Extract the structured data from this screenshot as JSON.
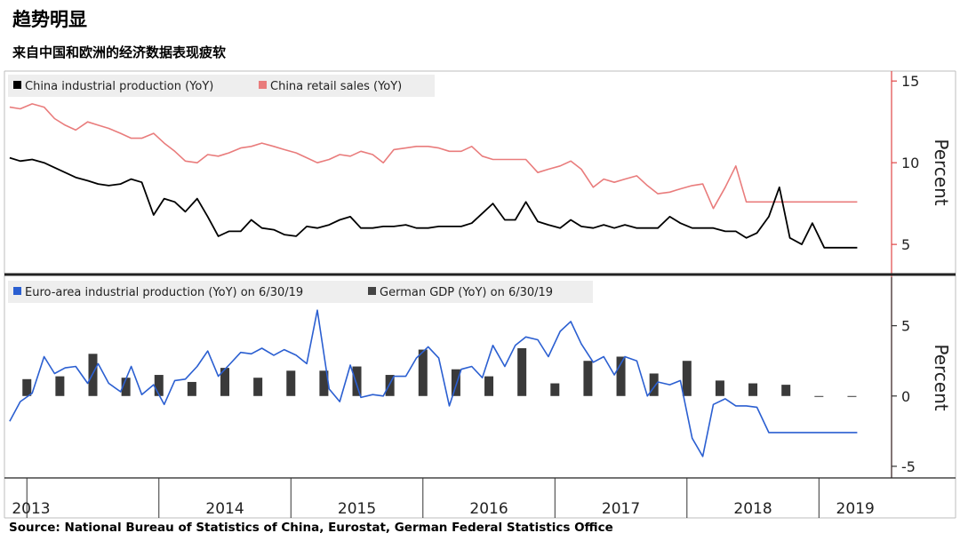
{
  "title": "趋势明显",
  "subtitle": "来自中国和欧洲的经济数据表现疲软",
  "source": "Source: National Bureau of Statistics of China, Eurostat, German Federal Statistics Office",
  "chart_data": [
    {
      "type": "line",
      "panel": "top",
      "ylabel": "Percent",
      "ylim": [
        4.3,
        15.5
      ],
      "yticks": [
        5,
        10,
        15
      ],
      "legend_position": "top-left",
      "series": [
        {
          "name": "China industrial production (YoY)",
          "color": "#000000",
          "x": [
            2012.87,
            2012.95,
            2013.04,
            2013.13,
            2013.21,
            2013.29,
            2013.37,
            2013.46,
            2013.54,
            2013.62,
            2013.71,
            2013.79,
            2013.87,
            2013.96,
            2014.04,
            2014.12,
            2014.2,
            2014.29,
            2014.37,
            2014.45,
            2014.53,
            2014.62,
            2014.7,
            2014.78,
            2014.87,
            2014.95,
            2015.04,
            2015.12,
            2015.2,
            2015.29,
            2015.37,
            2015.45,
            2015.53,
            2015.62,
            2015.7,
            2015.78,
            2015.87,
            2015.95,
            2016.04,
            2016.12,
            2016.2,
            2016.29,
            2016.37,
            2016.45,
            2016.53,
            2016.62,
            2016.7,
            2016.78,
            2016.87,
            2016.95,
            2017.04,
            2017.12,
            2017.2,
            2017.29,
            2017.37,
            2017.45,
            2017.53,
            2017.62,
            2017.7,
            2017.78,
            2017.87,
            2017.95,
            2018.04,
            2018.12,
            2018.2,
            2018.29,
            2018.37,
            2018.45,
            2018.53,
            2018.62,
            2018.7,
            2018.78,
            2018.87,
            2018.95,
            2019.04,
            2019.12,
            2019.2,
            2019.29
          ],
          "y": [
            10.3,
            10.1,
            10.2,
            10.0,
            9.7,
            9.4,
            9.1,
            8.9,
            8.7,
            8.6,
            8.7,
            9.0,
            8.8,
            6.8,
            7.8,
            7.6,
            7.0,
            7.8,
            6.7,
            5.5,
            5.8,
            5.8,
            6.5,
            6.0,
            5.9,
            5.6,
            5.5,
            6.1,
            6.0,
            6.2,
            6.5,
            6.7,
            6.0,
            6.0,
            6.1,
            6.1,
            6.2,
            6.0,
            6.0,
            6.1,
            6.1,
            6.1,
            6.3,
            6.9,
            7.5,
            6.5,
            6.5,
            7.6,
            6.4,
            6.2,
            6.0,
            6.5,
            6.1,
            6.0,
            6.2,
            6.0,
            6.2,
            6.0,
            6.0,
            6.0,
            6.7,
            6.3,
            6.0,
            6.0,
            6.0,
            5.8,
            5.8,
            5.4,
            5.7,
            6.7,
            8.5,
            5.4,
            5.0,
            6.3,
            4.8,
            4.8,
            4.8,
            4.8
          ]
        },
        {
          "name": "China retail sales (YoY)",
          "color": "#e97c7c",
          "x": [
            2012.87,
            2012.95,
            2013.04,
            2013.13,
            2013.21,
            2013.29,
            2013.37,
            2013.46,
            2013.54,
            2013.62,
            2013.71,
            2013.79,
            2013.87,
            2013.96,
            2014.04,
            2014.12,
            2014.2,
            2014.29,
            2014.37,
            2014.45,
            2014.53,
            2014.62,
            2014.7,
            2014.78,
            2014.87,
            2014.95,
            2015.04,
            2015.12,
            2015.2,
            2015.29,
            2015.37,
            2015.45,
            2015.53,
            2015.62,
            2015.7,
            2015.78,
            2015.87,
            2015.95,
            2016.04,
            2016.12,
            2016.2,
            2016.29,
            2016.37,
            2016.45,
            2016.53,
            2016.62,
            2016.7,
            2016.78,
            2016.87,
            2016.95,
            2017.04,
            2017.12,
            2017.2,
            2017.29,
            2017.37,
            2017.45,
            2017.53,
            2017.62,
            2017.7,
            2017.78,
            2017.87,
            2017.95,
            2018.04,
            2018.12,
            2018.2,
            2018.29,
            2018.37,
            2018.45,
            2018.53,
            2018.62,
            2018.7,
            2018.78,
            2018.87,
            2018.95,
            2019.04,
            2019.12,
            2019.2,
            2019.29
          ],
          "y": [
            13.4,
            13.3,
            13.6,
            13.4,
            12.7,
            12.3,
            12.0,
            12.5,
            12.3,
            12.1,
            11.8,
            11.5,
            11.5,
            11.8,
            11.2,
            10.7,
            10.1,
            10.0,
            10.5,
            10.4,
            10.6,
            10.9,
            11.0,
            11.2,
            11.0,
            10.8,
            10.6,
            10.3,
            10.0,
            10.2,
            10.5,
            10.4,
            10.7,
            10.5,
            10.0,
            10.8,
            10.9,
            11.0,
            11.0,
            10.9,
            10.7,
            10.7,
            11.0,
            10.4,
            10.2,
            10.2,
            10.2,
            10.2,
            9.4,
            9.6,
            9.8,
            10.1,
            9.6,
            8.5,
            9.0,
            8.8,
            9.0,
            9.2,
            8.6,
            8.1,
            8.2,
            8.4,
            8.6,
            8.7,
            7.2,
            8.5,
            9.8,
            7.6,
            7.6,
            7.6,
            7.6,
            7.6,
            7.6,
            7.6,
            7.6,
            7.6,
            7.6,
            7.6
          ]
        }
      ]
    },
    {
      "type": "bar+line",
      "panel": "bottom",
      "ylabel": "Percent",
      "ylim": [
        -5.7,
        8.2
      ],
      "yticks": [
        -5,
        0,
        5
      ],
      "legend_position": "top-left",
      "series": [
        {
          "name": "Euro-area industrial production (YoY) on 6/30/19",
          "type": "line",
          "color": "#2b5fd1",
          "x": [
            2012.87,
            2012.95,
            2013.04,
            2013.13,
            2013.21,
            2013.29,
            2013.37,
            2013.46,
            2013.54,
            2013.62,
            2013.71,
            2013.79,
            2013.87,
            2013.96,
            2014.04,
            2014.12,
            2014.2,
            2014.29,
            2014.37,
            2014.45,
            2014.53,
            2014.62,
            2014.7,
            2014.78,
            2014.87,
            2014.95,
            2015.04,
            2015.12,
            2015.2,
            2015.29,
            2015.37,
            2015.45,
            2015.53,
            2015.62,
            2015.7,
            2015.78,
            2015.87,
            2015.95,
            2016.04,
            2016.12,
            2016.2,
            2016.29,
            2016.37,
            2016.45,
            2016.53,
            2016.62,
            2016.7,
            2016.78,
            2016.87,
            2016.95,
            2017.04,
            2017.12,
            2017.2,
            2017.29,
            2017.37,
            2017.45,
            2017.53,
            2017.62,
            2017.7,
            2017.78,
            2017.87,
            2017.95,
            2018.04,
            2018.12,
            2018.2,
            2018.29,
            2018.37,
            2018.45,
            2018.53,
            2018.62,
            2018.7,
            2018.78,
            2018.87,
            2018.95,
            2019.04,
            2019.12,
            2019.2,
            2019.29
          ],
          "y": [
            -1.8,
            -0.4,
            0.2,
            2.8,
            1.6,
            2.0,
            2.1,
            0.9,
            2.3,
            0.9,
            0.3,
            2.1,
            0.1,
            0.8,
            -0.6,
            1.1,
            1.2,
            2.1,
            3.2,
            1.4,
            2.2,
            3.1,
            3.0,
            3.4,
            2.9,
            3.3,
            2.9,
            2.3,
            6.1,
            0.5,
            -0.4,
            2.2,
            -0.1,
            0.1,
            0.0,
            1.4,
            1.4,
            2.7,
            3.5,
            2.7,
            -0.7,
            1.9,
            2.1,
            1.3,
            3.6,
            2.1,
            3.6,
            4.2,
            4.0,
            2.8,
            4.6,
            5.3,
            3.7,
            2.4,
            2.8,
            1.5,
            2.8,
            2.5,
            0.0,
            1.0,
            0.8,
            1.1,
            -3.0,
            -4.3,
            -0.6,
            -0.2,
            -0.7,
            -0.7,
            -0.8,
            -2.6,
            -2.6,
            -2.6,
            -2.6,
            -2.6,
            -2.6,
            -2.6,
            -2.6,
            -2.6
          ]
        },
        {
          "name": "German GDP (YoY) on 6/30/19",
          "type": "bar",
          "color": "#3a3a3a",
          "x": [
            2013.0,
            2013.25,
            2013.5,
            2013.75,
            2014.0,
            2014.25,
            2014.5,
            2014.75,
            2015.0,
            2015.25,
            2015.5,
            2015.75,
            2016.0,
            2016.25,
            2016.5,
            2016.75,
            2017.0,
            2017.25,
            2017.5,
            2017.75,
            2018.0,
            2018.25,
            2018.5,
            2018.75,
            2019.0,
            2019.25
          ],
          "y": [
            1.2,
            1.4,
            3.0,
            1.3,
            1.5,
            1.0,
            2.0,
            1.3,
            1.8,
            1.8,
            2.1,
            1.5,
            3.3,
            1.9,
            1.4,
            3.4,
            0.9,
            2.5,
            2.8,
            1.6,
            2.5,
            1.1,
            0.9,
            0.8,
            0.0,
            0.0
          ]
        }
      ]
    }
  ],
  "x_axis": {
    "ticks": [
      "2013",
      "2014",
      "2015",
      "2016",
      "2017",
      "2018",
      "2019"
    ],
    "range": [
      2012.83,
      2019.55
    ]
  }
}
